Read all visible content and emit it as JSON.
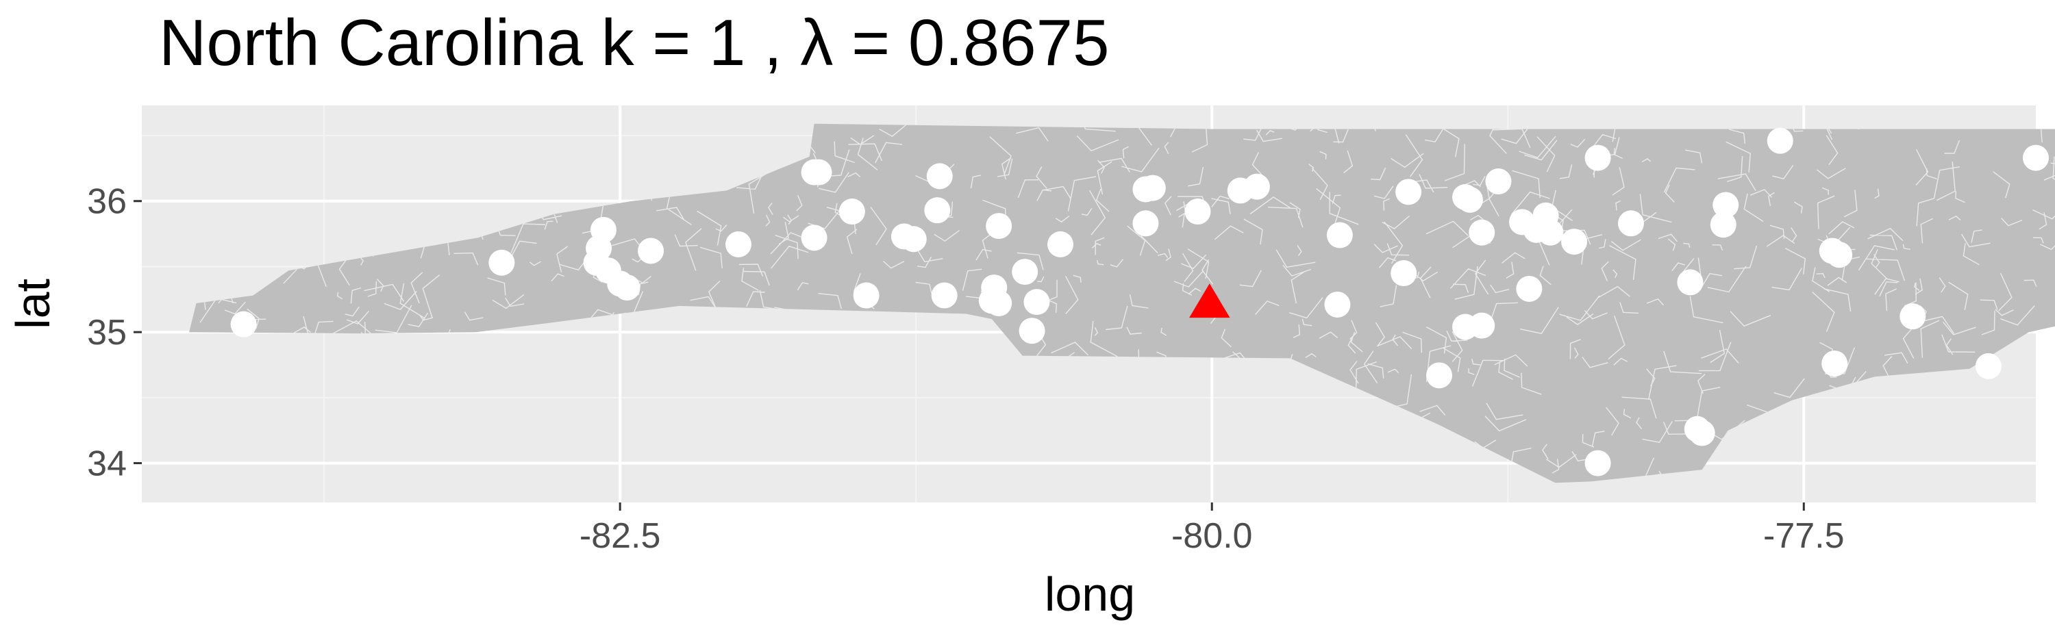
{
  "title": "North Carolina  k =  1 ,  λ  =  0.8675",
  "colors": {
    "panel": "#ebebeb",
    "grid_major": "#ffffff",
    "grid_minor": "#f4f4f4",
    "state_fill": "#bebebe",
    "tract_border": "#f2f2f2",
    "point": "#ffffff",
    "marker": "#ff0000"
  },
  "chart_data": {
    "type": "scatter",
    "title": "North Carolina  k =  1 ,  λ  =  0.8675",
    "xlabel": "long",
    "ylabel": "lat",
    "xlim": [
      -84.52,
      -76.52
    ],
    "ylim": [
      33.7,
      36.73
    ],
    "x_ticks": [
      -82.5,
      -80.0,
      -77.5
    ],
    "x_tick_labels": [
      "-82.5",
      "-80.0",
      "-77.5"
    ],
    "y_ticks": [
      34,
      35,
      36
    ],
    "y_tick_labels": [
      "34",
      "35",
      "36"
    ],
    "grid": true,
    "background_map": "North Carolina census tracts",
    "points": [
      {
        "x": -84.09,
        "y": 35.06
      },
      {
        "x": -83.0,
        "y": 35.53
      },
      {
        "x": -82.57,
        "y": 35.78
      },
      {
        "x": -82.59,
        "y": 35.64
      },
      {
        "x": -82.6,
        "y": 35.53
      },
      {
        "x": -82.55,
        "y": 35.47
      },
      {
        "x": -82.5,
        "y": 35.37
      },
      {
        "x": -82.47,
        "y": 35.34
      },
      {
        "x": -82.37,
        "y": 35.62
      },
      {
        "x": -82.0,
        "y": 35.67
      },
      {
        "x": -81.68,
        "y": 36.22
      },
      {
        "x": -81.66,
        "y": 36.22
      },
      {
        "x": -81.68,
        "y": 35.72
      },
      {
        "x": -81.52,
        "y": 35.92
      },
      {
        "x": -81.46,
        "y": 35.28
      },
      {
        "x": -81.3,
        "y": 35.73
      },
      {
        "x": -81.26,
        "y": 35.71
      },
      {
        "x": -81.15,
        "y": 36.19
      },
      {
        "x": -81.16,
        "y": 35.93
      },
      {
        "x": -81.13,
        "y": 35.28
      },
      {
        "x": -80.9,
        "y": 35.81
      },
      {
        "x": -80.92,
        "y": 35.34
      },
      {
        "x": -80.93,
        "y": 35.24
      },
      {
        "x": -80.9,
        "y": 35.22
      },
      {
        "x": -80.74,
        "y": 35.23
      },
      {
        "x": -80.79,
        "y": 35.46
      },
      {
        "x": -80.76,
        "y": 35.01
      },
      {
        "x": -80.64,
        "y": 35.67
      },
      {
        "x": -80.28,
        "y": 36.09
      },
      {
        "x": -80.25,
        "y": 36.1
      },
      {
        "x": -80.28,
        "y": 35.83
      },
      {
        "x": -80.06,
        "y": 35.92
      },
      {
        "x": -79.88,
        "y": 36.08
      },
      {
        "x": -79.81,
        "y": 36.11
      },
      {
        "x": -79.46,
        "y": 35.74
      },
      {
        "x": -79.47,
        "y": 35.21
      },
      {
        "x": -79.17,
        "y": 36.07
      },
      {
        "x": -79.19,
        "y": 35.45
      },
      {
        "x": -79.04,
        "y": 34.67
      },
      {
        "x": -78.93,
        "y": 36.03
      },
      {
        "x": -78.91,
        "y": 36.01
      },
      {
        "x": -78.93,
        "y": 35.04
      },
      {
        "x": -78.86,
        "y": 35.05
      },
      {
        "x": -78.86,
        "y": 35.76
      },
      {
        "x": -78.79,
        "y": 36.15
      },
      {
        "x": -78.69,
        "y": 35.84
      },
      {
        "x": -78.63,
        "y": 35.78
      },
      {
        "x": -78.59,
        "y": 35.89
      },
      {
        "x": -78.57,
        "y": 35.76
      },
      {
        "x": -78.66,
        "y": 35.33
      },
      {
        "x": -78.47,
        "y": 35.69
      },
      {
        "x": -78.37,
        "y": 36.33
      },
      {
        "x": -78.37,
        "y": 34.0
      },
      {
        "x": -78.23,
        "y": 35.83
      },
      {
        "x": -77.98,
        "y": 35.38
      },
      {
        "x": -77.95,
        "y": 34.26
      },
      {
        "x": -77.93,
        "y": 34.23
      },
      {
        "x": -77.83,
        "y": 35.97
      },
      {
        "x": -77.84,
        "y": 35.82
      },
      {
        "x": -77.6,
        "y": 36.46
      },
      {
        "x": -77.38,
        "y": 35.62
      },
      {
        "x": -77.35,
        "y": 35.59
      },
      {
        "x": -77.37,
        "y": 34.76
      },
      {
        "x": -77.04,
        "y": 35.12
      },
      {
        "x": -76.72,
        "y": 34.74
      },
      {
        "x": -76.52,
        "y": 36.33
      }
    ],
    "marker": {
      "x": -80.01,
      "y": 35.23,
      "shape": "triangle"
    }
  }
}
